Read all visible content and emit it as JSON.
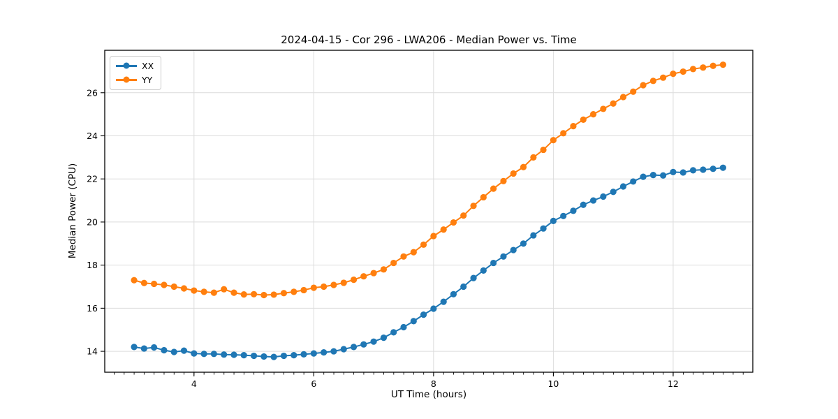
{
  "figure": {
    "background": "#ffffff"
  },
  "chart_data": {
    "type": "line",
    "title": "2024-04-15 - Cor 296 - LWA206 - Median Power vs. Time",
    "xlabel": "UT Time (hours)",
    "ylabel": "Median Power (CPU)",
    "xlim": [
      2.51,
      13.33
    ],
    "ylim": [
      13.03,
      27.97
    ],
    "x_ticks": [
      4,
      6,
      8,
      10,
      12
    ],
    "y_ticks": [
      14,
      16,
      18,
      20,
      22,
      24,
      26
    ],
    "x_minor_step": 0.1667,
    "grid": true,
    "grid_color": "#dcdcdc",
    "spine_color": "#000000",
    "legend_position": "upper-left",
    "x": [
      3.0,
      3.167,
      3.333,
      3.5,
      3.667,
      3.833,
      4.0,
      4.167,
      4.333,
      4.5,
      4.667,
      4.833,
      5.0,
      5.167,
      5.333,
      5.5,
      5.667,
      5.833,
      6.0,
      6.167,
      6.333,
      6.5,
      6.667,
      6.833,
      7.0,
      7.167,
      7.333,
      7.5,
      7.667,
      7.833,
      8.0,
      8.167,
      8.333,
      8.5,
      8.667,
      8.833,
      9.0,
      9.167,
      9.333,
      9.5,
      9.667,
      9.833,
      10.0,
      10.167,
      10.333,
      10.5,
      10.667,
      10.833,
      11.0,
      11.167,
      11.333,
      11.5,
      11.667,
      11.833,
      12.0,
      12.167,
      12.333,
      12.5,
      12.667,
      12.833
    ],
    "series": [
      {
        "name": "XX",
        "color": "#1f77b4",
        "values": [
          14.2,
          14.13,
          14.18,
          14.05,
          13.97,
          14.03,
          13.9,
          13.88,
          13.88,
          13.85,
          13.84,
          13.82,
          13.79,
          13.76,
          13.74,
          13.79,
          13.82,
          13.86,
          13.9,
          13.95,
          14.0,
          14.1,
          14.2,
          14.32,
          14.45,
          14.63,
          14.88,
          15.12,
          15.4,
          15.7,
          15.98,
          16.3,
          16.65,
          17.0,
          17.4,
          17.75,
          18.1,
          18.4,
          18.7,
          19.0,
          19.38,
          19.7,
          20.05,
          20.28,
          20.52,
          20.8,
          21.0,
          21.18,
          21.4,
          21.65,
          21.88,
          22.1,
          22.18,
          22.16,
          22.32,
          22.3,
          22.4,
          22.43,
          22.47,
          22.52
        ]
      },
      {
        "name": "YY",
        "color": "#ff7f0e",
        "values": [
          17.3,
          17.17,
          17.13,
          17.08,
          17.0,
          16.92,
          16.82,
          16.76,
          16.72,
          16.88,
          16.72,
          16.64,
          16.65,
          16.61,
          16.63,
          16.7,
          16.76,
          16.84,
          16.95,
          17.0,
          17.08,
          17.18,
          17.32,
          17.48,
          17.63,
          17.8,
          18.1,
          18.4,
          18.6,
          18.95,
          19.35,
          19.65,
          19.98,
          20.3,
          20.75,
          21.15,
          21.55,
          21.9,
          22.25,
          22.55,
          23.0,
          23.35,
          23.8,
          24.12,
          24.45,
          24.75,
          25.0,
          25.25,
          25.5,
          25.8,
          26.05,
          26.35,
          26.55,
          26.7,
          26.88,
          26.98,
          27.1,
          27.17,
          27.25,
          27.3
        ]
      }
    ]
  }
}
